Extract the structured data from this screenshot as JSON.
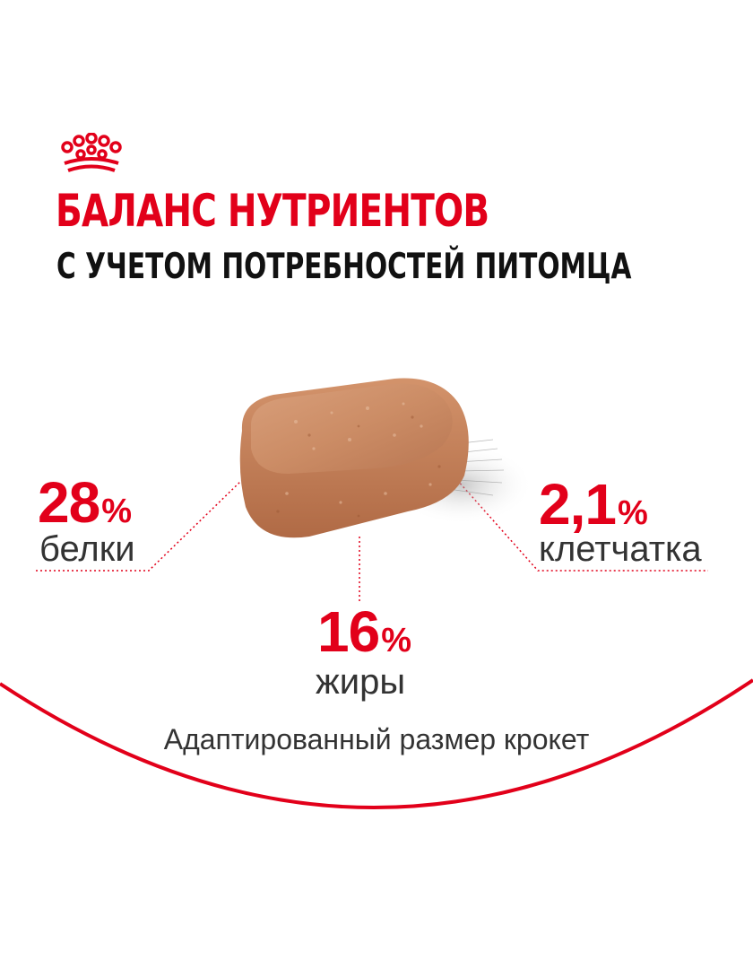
{
  "brand": {
    "logo_icon": "royal-canin-crown-icon",
    "color": "#e2001a"
  },
  "headline": {
    "title": "БАЛАНС НУТРИЕНТОВ",
    "subtitle": "С УЧЕТОМ ПОТРЕБНОСТЕЙ ПИТОМЦА"
  },
  "stats": {
    "protein": {
      "value": "28",
      "unit": "%",
      "label": "белки"
    },
    "fiber": {
      "value": "2,1",
      "unit": "%",
      "label": "клетчатка"
    },
    "fat": {
      "value": "16",
      "unit": "%",
      "label": "жиры"
    }
  },
  "caption": "Адаптированный размер крокет",
  "image": {
    "subject": "kibble-icon"
  }
}
